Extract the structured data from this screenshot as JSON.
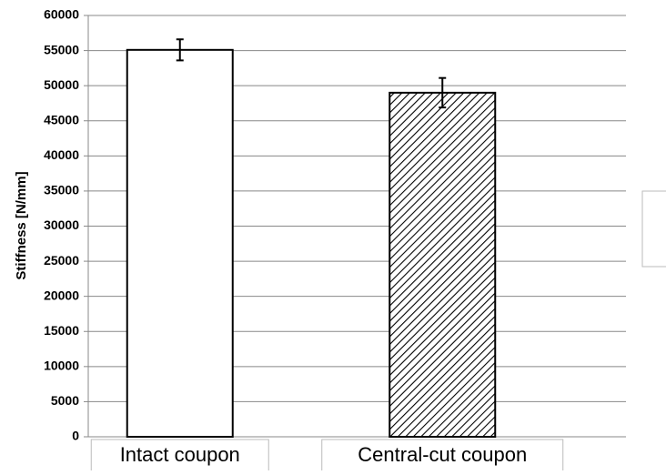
{
  "chart_data": {
    "type": "bar",
    "y_label": "Stiffness [N/mm]",
    "categories": [
      "Intact coupon",
      "Central-cut coupon"
    ],
    "values": [
      55100,
      49000
    ],
    "errors": [
      1500,
      2100
    ],
    "hatch": [
      false,
      true
    ],
    "ylim": [
      0,
      60000
    ],
    "yticks": [
      0,
      5000,
      10000,
      15000,
      20000,
      25000,
      30000,
      35000,
      40000,
      45000,
      50000,
      55000,
      60000
    ],
    "grid": true
  }
}
